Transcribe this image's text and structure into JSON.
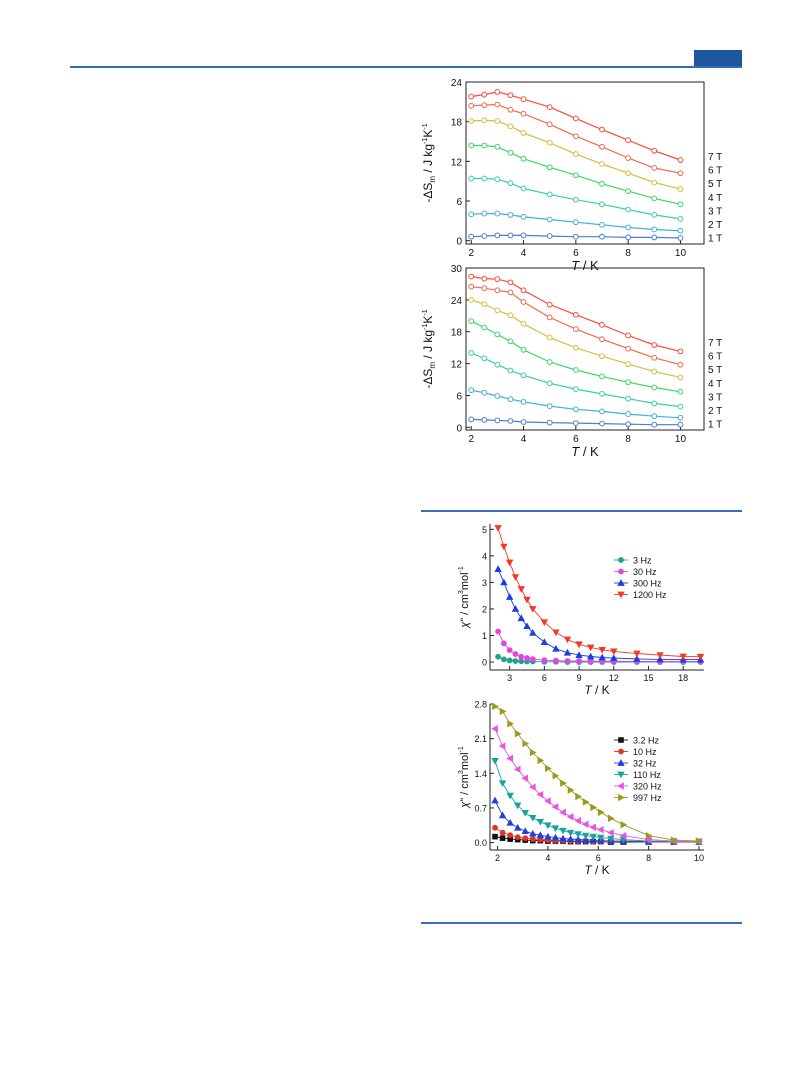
{
  "page": {
    "header_color": "#2f6db5"
  },
  "chart_data": [
    {
      "type": "line",
      "xlabel_italic": "T",
      "xlabel_rest": " / K",
      "ylabel": "-ΔS_m / J kg^-1 K^-1",
      "xlim": [
        1.8,
        10.9
      ],
      "ylim": [
        -0.5,
        24
      ],
      "xticks": [
        2,
        4,
        6,
        8,
        10
      ],
      "yticks": [
        0,
        6,
        12,
        18,
        24
      ],
      "grid": false,
      "x": [
        2,
        2.5,
        3,
        3.5,
        4,
        5,
        6,
        7,
        8,
        9,
        10
      ],
      "series": [
        {
          "name": "1 T",
          "color": "#4a7fd6",
          "values": [
            0.6,
            0.7,
            0.8,
            0.8,
            0.8,
            0.7,
            0.6,
            0.6,
            0.5,
            0.5,
            0.4
          ]
        },
        {
          "name": "2 T",
          "color": "#3fb0d8",
          "values": [
            4.0,
            4.1,
            4.1,
            3.9,
            3.6,
            3.2,
            2.8,
            2.4,
            2.0,
            1.7,
            1.5
          ]
        },
        {
          "name": "3 T",
          "color": "#3bcfa8",
          "values": [
            9.4,
            9.4,
            9.3,
            8.7,
            7.9,
            7.0,
            6.2,
            5.5,
            4.7,
            3.9,
            3.3
          ]
        },
        {
          "name": "4 T",
          "color": "#3ad866",
          "values": [
            14.4,
            14.4,
            14.2,
            13.3,
            12.4,
            11.1,
            9.9,
            8.6,
            7.5,
            6.4,
            5.5
          ]
        },
        {
          "name": "5 T",
          "color": "#d2c03a",
          "values": [
            18.1,
            18.2,
            18.1,
            17.3,
            16.3,
            14.8,
            13.1,
            11.6,
            10.2,
            8.8,
            7.8
          ]
        },
        {
          "name": "6 T",
          "color": "#f26a4a",
          "values": [
            20.4,
            20.5,
            20.6,
            19.8,
            19.2,
            17.6,
            15.8,
            14.2,
            12.5,
            11.0,
            10.2
          ]
        },
        {
          "name": "7 T",
          "color": "#ff4a3a",
          "values": [
            21.8,
            22.1,
            22.5,
            22.0,
            21.4,
            20.2,
            18.5,
            16.8,
            15.2,
            13.6,
            12.2
          ]
        }
      ]
    },
    {
      "type": "line",
      "xlabel_italic": "T",
      "xlabel_rest": " / K",
      "ylabel": "-ΔS_m / J kg^-1 K^-1",
      "xlim": [
        1.8,
        10.9
      ],
      "ylim": [
        -0.5,
        30
      ],
      "xticks": [
        2,
        4,
        6,
        8,
        10
      ],
      "yticks": [
        0,
        6,
        12,
        18,
        24,
        30
      ],
      "grid": false,
      "x": [
        2,
        2.5,
        3,
        3.5,
        4,
        5,
        6,
        7,
        8,
        9,
        10
      ],
      "series": [
        {
          "name": "1 T",
          "color": "#4a7fd6",
          "values": [
            1.5,
            1.4,
            1.3,
            1.2,
            1.0,
            0.9,
            0.8,
            0.7,
            0.6,
            0.5,
            0.5
          ]
        },
        {
          "name": "2 T",
          "color": "#3fb0d8",
          "values": [
            7.0,
            6.5,
            5.9,
            5.3,
            4.8,
            4.0,
            3.4,
            3.0,
            2.5,
            2.1,
            1.8
          ]
        },
        {
          "name": "3 T",
          "color": "#3bcfa8",
          "values": [
            14.0,
            13.0,
            11.8,
            10.7,
            9.8,
            8.3,
            7.2,
            6.3,
            5.4,
            4.5,
            3.9
          ]
        },
        {
          "name": "4 T",
          "color": "#3ad866",
          "values": [
            20.0,
            18.8,
            17.5,
            16.2,
            14.6,
            12.3,
            10.8,
            9.6,
            8.5,
            7.5,
            6.7
          ]
        },
        {
          "name": "5 T",
          "color": "#d2c03a",
          "values": [
            24.0,
            23.2,
            22.0,
            21.1,
            19.5,
            16.9,
            15.0,
            13.4,
            11.9,
            10.5,
            9.4
          ]
        },
        {
          "name": "6 T",
          "color": "#f26a4a",
          "values": [
            26.5,
            26.2,
            25.8,
            25.4,
            23.6,
            20.7,
            18.5,
            16.6,
            14.8,
            13.1,
            11.8
          ]
        },
        {
          "name": "7 T",
          "color": "#ff4a3a",
          "values": [
            28.4,
            28.0,
            27.9,
            27.3,
            25.8,
            23.1,
            21.2,
            19.3,
            17.3,
            15.5,
            14.3
          ]
        }
      ]
    },
    {
      "type": "line",
      "xlabel_italic": "T",
      "xlabel_rest": " / K",
      "ylabel": "χ\" / cm^3 mol^-1",
      "xlim": [
        1.3,
        19.8
      ],
      "ylim": [
        -0.3,
        5.2
      ],
      "xticks": [
        3,
        6,
        9,
        12,
        15,
        18
      ],
      "yticks": [
        0,
        1,
        2,
        3,
        4,
        5
      ],
      "grid": false,
      "legend": "upper right",
      "x": [
        2.0,
        2.5,
        3.0,
        3.5,
        4.0,
        4.5,
        5.0,
        6.0,
        7.0,
        8.0,
        9.0,
        10.0,
        11.0,
        12.0,
        14.0,
        16.0,
        18.0,
        19.5
      ],
      "series": [
        {
          "name": "3 Hz",
          "marker": "circle",
          "color": "#1fa488",
          "values": [
            0.2,
            0.1,
            0.06,
            0.04,
            0.03,
            0.02,
            0.02,
            0.01,
            0.01,
            0.0,
            0.0,
            0.0,
            0.0,
            0.0,
            0.0,
            0.0,
            0.0,
            0.0
          ]
        },
        {
          "name": "30 Hz",
          "marker": "circle",
          "color": "#e244e6",
          "values": [
            1.15,
            0.7,
            0.45,
            0.3,
            0.2,
            0.15,
            0.11,
            0.07,
            0.05,
            0.04,
            0.04,
            0.03,
            0.03,
            0.03,
            0.02,
            0.02,
            0.02,
            0.02
          ]
        },
        {
          "name": "300 Hz",
          "marker": "triangle-up",
          "color": "#1a3ee0",
          "values": [
            3.5,
            3.0,
            2.45,
            2.0,
            1.65,
            1.35,
            1.1,
            0.75,
            0.5,
            0.35,
            0.26,
            0.21,
            0.17,
            0.15,
            0.12,
            0.1,
            0.09,
            0.09
          ]
        },
        {
          "name": "1200 Hz",
          "marker": "triangle-down",
          "color": "#f23a2a",
          "values": [
            5.05,
            4.35,
            3.75,
            3.2,
            2.75,
            2.35,
            2.0,
            1.5,
            1.12,
            0.85,
            0.67,
            0.55,
            0.46,
            0.4,
            0.32,
            0.26,
            0.21,
            0.2
          ]
        }
      ]
    },
    {
      "type": "line",
      "xlabel_italic": "T",
      "xlabel_rest": " / K",
      "ylabel": "χ\" / cm^3 mol^-1",
      "xlim": [
        1.7,
        10.2
      ],
      "ylim": [
        -0.15,
        2.8
      ],
      "xticks": [
        2,
        4,
        6,
        8,
        10
      ],
      "yticks": [
        0.0,
        0.7,
        1.4,
        2.1,
        2.8
      ],
      "ytick_labels": [
        "0.0",
        "0.7",
        "1.4",
        "2.1",
        "2.8"
      ],
      "grid": false,
      "legend": "upper right",
      "x": [
        1.9,
        2.2,
        2.5,
        2.8,
        3.1,
        3.4,
        3.7,
        4.0,
        4.3,
        4.6,
        4.9,
        5.2,
        5.5,
        5.8,
        6.1,
        6.5,
        7.0,
        8.0,
        9.0,
        10.0
      ],
      "series": [
        {
          "name": "3.2 Hz",
          "marker": "square",
          "color": "#111111",
          "values": [
            0.12,
            0.09,
            0.07,
            0.06,
            0.05,
            0.04,
            0.04,
            0.03,
            0.03,
            0.03,
            0.02,
            0.02,
            0.02,
            0.02,
            0.02,
            0.01,
            0.01,
            0.01,
            0.01,
            0.01
          ]
        },
        {
          "name": "10  Hz",
          "marker": "circle",
          "color": "#e8312a",
          "values": [
            0.3,
            0.2,
            0.15,
            0.11,
            0.09,
            0.07,
            0.06,
            0.05,
            0.04,
            0.04,
            0.03,
            0.03,
            0.03,
            0.02,
            0.02,
            0.02,
            0.02,
            0.01,
            0.01,
            0.01
          ]
        },
        {
          "name": "32  Hz",
          "marker": "triangle-up",
          "color": "#1f3fd8",
          "values": [
            0.85,
            0.55,
            0.4,
            0.3,
            0.23,
            0.18,
            0.15,
            0.12,
            0.1,
            0.08,
            0.07,
            0.06,
            0.05,
            0.05,
            0.04,
            0.03,
            0.03,
            0.02,
            0.02,
            0.01
          ]
        },
        {
          "name": "110 Hz",
          "marker": "triangle-down",
          "color": "#1aa39a",
          "values": [
            1.65,
            1.2,
            0.95,
            0.75,
            0.6,
            0.5,
            0.42,
            0.35,
            0.29,
            0.24,
            0.2,
            0.17,
            0.14,
            0.12,
            0.1,
            0.08,
            0.06,
            0.03,
            0.02,
            0.02
          ]
        },
        {
          "name": "320 Hz",
          "marker": "triangle-left",
          "color": "#e855e0",
          "values": [
            2.3,
            1.95,
            1.7,
            1.48,
            1.3,
            1.12,
            0.97,
            0.84,
            0.72,
            0.61,
            0.52,
            0.44,
            0.37,
            0.31,
            0.26,
            0.2,
            0.14,
            0.06,
            0.03,
            0.02
          ]
        },
        {
          "name": "997 Hz",
          "marker": "triangle-right",
          "color": "#9a9a1f",
          "values": [
            2.75,
            2.65,
            2.4,
            2.2,
            2.0,
            1.82,
            1.66,
            1.5,
            1.35,
            1.2,
            1.06,
            0.93,
            0.82,
            0.71,
            0.61,
            0.49,
            0.36,
            0.14,
            0.05,
            0.03
          ]
        }
      ]
    }
  ]
}
